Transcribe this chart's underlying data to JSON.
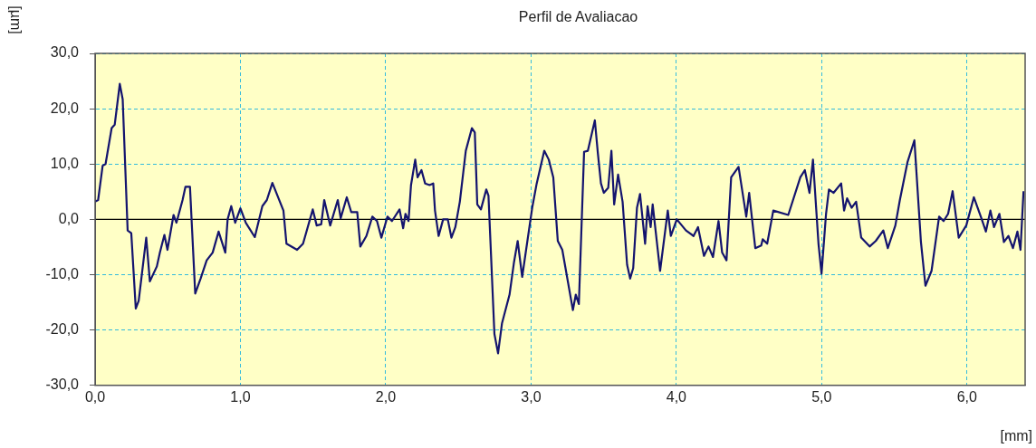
{
  "chart_data": {
    "type": "line",
    "title": "Perfil de Avaliacao",
    "xlabel": "[mm]",
    "ylabel": "[µm]",
    "xlim": [
      0,
      6.4
    ],
    "ylim": [
      -30,
      30
    ],
    "xticks": [
      {
        "value": 0,
        "label": "0,0"
      },
      {
        "value": 1,
        "label": "1,0"
      },
      {
        "value": 2,
        "label": "2,0"
      },
      {
        "value": 3,
        "label": "3,0"
      },
      {
        "value": 4,
        "label": "4,0"
      },
      {
        "value": 5,
        "label": "5,0"
      },
      {
        "value": 6,
        "label": "6,0"
      }
    ],
    "yticks": [
      {
        "value": -30,
        "label": "-30,0"
      },
      {
        "value": -20,
        "label": "-20,0"
      },
      {
        "value": -10,
        "label": "-10,0"
      },
      {
        "value": 0,
        "label": "0,0"
      },
      {
        "value": 10,
        "label": "10,0"
      },
      {
        "value": 20,
        "label": "20,0"
      },
      {
        "value": 30,
        "label": "30,0"
      }
    ],
    "grid": true,
    "legend": false,
    "marker": "none",
    "line_style": "solid",
    "ref_lines": [
      {
        "axis": "y",
        "value": 0,
        "color": "#000000"
      }
    ],
    "series": [
      {
        "color": "#14146e",
        "x": [
          0.0,
          0.021,
          0.052,
          0.072,
          0.114,
          0.135,
          0.17,
          0.19,
          0.224,
          0.249,
          0.28,
          0.3,
          0.352,
          0.377,
          0.425,
          0.446,
          0.477,
          0.498,
          0.54,
          0.56,
          0.602,
          0.622,
          0.653,
          0.689,
          0.726,
          0.768,
          0.809,
          0.85,
          0.896,
          0.912,
          0.937,
          0.964,
          1.0,
          1.037,
          1.099,
          1.151,
          1.182,
          1.22,
          1.296,
          1.317,
          1.39,
          1.431,
          1.498,
          1.525,
          1.556,
          1.577,
          1.608,
          1.618,
          1.67,
          1.69,
          1.732,
          1.763,
          1.804,
          1.825,
          1.867,
          1.908,
          1.94,
          1.97,
          2.012,
          2.043,
          2.095,
          2.12,
          2.136,
          2.157,
          2.174,
          2.203,
          2.219,
          2.246,
          2.271,
          2.302,
          2.327,
          2.339,
          2.364,
          2.395,
          2.427,
          2.452,
          2.479,
          2.51,
          2.551,
          2.593,
          2.613,
          2.63,
          2.655,
          2.692,
          2.707,
          2.748,
          2.773,
          2.8,
          2.852,
          2.883,
          2.908,
          2.939,
          3.008,
          3.039,
          3.091,
          3.122,
          3.153,
          3.184,
          3.215,
          3.288,
          3.308,
          3.329,
          3.365,
          3.391,
          3.439,
          3.46,
          3.481,
          3.501,
          3.531,
          3.553,
          3.572,
          3.599,
          3.63,
          3.661,
          3.682,
          3.703,
          3.729,
          3.75,
          3.785,
          3.802,
          3.823,
          3.837,
          3.888,
          3.941,
          3.962,
          4.003,
          4.066,
          4.118,
          4.149,
          4.19,
          4.221,
          4.252,
          4.29,
          4.315,
          4.345,
          4.377,
          4.428,
          4.481,
          4.501,
          4.543,
          4.584,
          4.594,
          4.625,
          4.667,
          4.77,
          4.853,
          4.884,
          4.916,
          4.94,
          4.978,
          4.999,
          5.03,
          5.05,
          5.082,
          5.134,
          5.154,
          5.175,
          5.206,
          5.237,
          5.272,
          5.33,
          5.372,
          5.424,
          5.455,
          5.507,
          5.538,
          5.59,
          5.638,
          5.683,
          5.714,
          5.756,
          5.808,
          5.839,
          5.87,
          5.901,
          5.943,
          5.995,
          6.047,
          6.099,
          6.13,
          6.161,
          6.186,
          6.223,
          6.254,
          6.285,
          6.316,
          6.347,
          6.368,
          6.389
        ],
        "values": [
          3.2,
          3.5,
          9.7,
          10.0,
          16.5,
          17.1,
          24.5,
          21.7,
          -2.0,
          -2.5,
          -16.1,
          -14.7,
          -3.3,
          -11.2,
          -8.5,
          -6.0,
          -2.8,
          -5.5,
          0.8,
          -0.6,
          3.5,
          5.9,
          5.9,
          -13.4,
          -10.7,
          -7.4,
          -6.0,
          -2.2,
          -6.0,
          0.0,
          2.4,
          -0.6,
          2.0,
          -0.6,
          -3.2,
          2.4,
          3.5,
          6.6,
          1.6,
          -4.4,
          -5.5,
          -4.4,
          1.8,
          -1.1,
          -0.9,
          3.5,
          0.0,
          -1.1,
          3.5,
          0.2,
          4.0,
          1.3,
          1.3,
          -4.9,
          -3.0,
          0.5,
          -0.3,
          -3.3,
          0.5,
          -0.3,
          1.8,
          -1.6,
          1.0,
          -0.3,
          6.2,
          10.8,
          7.6,
          8.9,
          6.5,
          6.2,
          6.5,
          1.6,
          -3.0,
          0.0,
          0.0,
          -3.3,
          -1.4,
          3.2,
          12.4,
          16.5,
          15.7,
          2.7,
          1.8,
          5.4,
          4.3,
          -20.7,
          -24.2,
          -18.8,
          -13.6,
          -7.7,
          -3.9,
          -10.4,
          2.1,
          6.5,
          12.4,
          10.8,
          7.6,
          -3.9,
          -5.5,
          -16.4,
          -13.6,
          -15.3,
          12.2,
          12.4,
          17.9,
          11.9,
          6.5,
          4.8,
          5.7,
          12.4,
          2.7,
          8.1,
          3.2,
          -8.2,
          -10.7,
          -8.8,
          2.1,
          4.6,
          -4.4,
          2.4,
          -1.4,
          2.7,
          -9.3,
          1.6,
          -3.0,
          0.0,
          -2.0,
          -3.0,
          -1.4,
          -6.6,
          -4.9,
          -6.8,
          -0.3,
          -6.0,
          -7.4,
          7.6,
          9.5,
          0.5,
          4.8,
          -5.2,
          -4.7,
          -3.6,
          -4.4,
          1.6,
          0.8,
          7.6,
          8.9,
          4.8,
          10.8,
          -4.4,
          -9.8,
          1.0,
          5.4,
          4.8,
          6.5,
          1.6,
          3.8,
          2.1,
          3.2,
          -3.3,
          -4.9,
          -3.9,
          -2.0,
          -5.2,
          -1.1,
          3.5,
          10.3,
          14.3,
          -4.1,
          -12.0,
          -9.3,
          0.5,
          -0.3,
          1.0,
          5.1,
          -3.3,
          -1.1,
          4.0,
          0.2,
          -2.2,
          1.6,
          -1.4,
          1.0,
          -4.1,
          -3.0,
          -5.2,
          -2.2,
          -5.5,
          5.1
        ]
      }
    ]
  }
}
